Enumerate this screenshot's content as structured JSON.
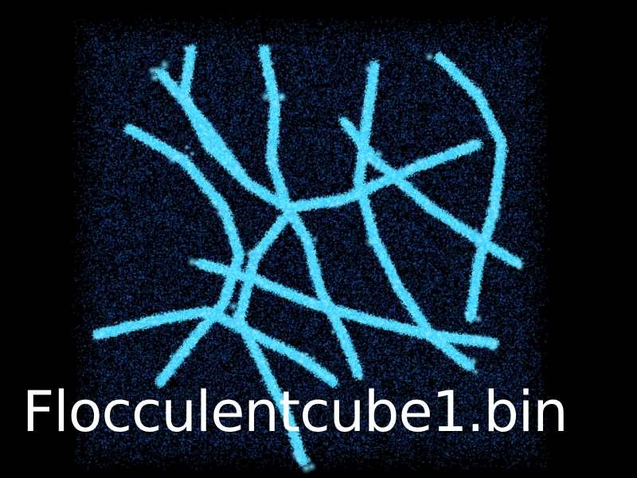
{
  "caption": {
    "filename": "Flocculentcube1.bin"
  },
  "visualization": {
    "subject": "particle-cloud",
    "background_color": "#000000",
    "particle_color": "#1f9fff",
    "filament_color": "#4fe8ff",
    "caption_color": "#ffffff"
  }
}
